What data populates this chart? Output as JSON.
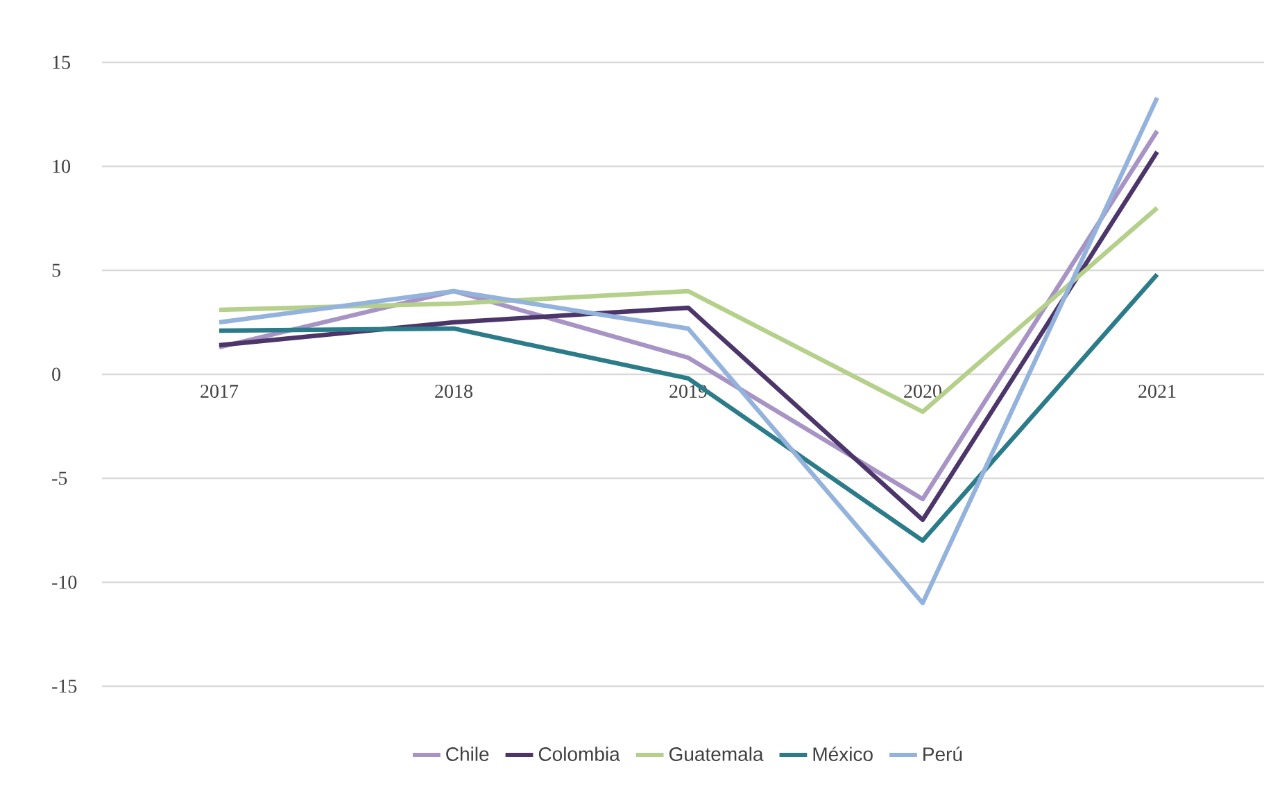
{
  "chart_data": {
    "type": "line",
    "categories": [
      "2017",
      "2018",
      "2019",
      "2020",
      "2021"
    ],
    "series": [
      {
        "name": "Chile",
        "color": "#a794c4",
        "values": [
          1.3,
          4.0,
          0.8,
          -6.0,
          11.7
        ]
      },
      {
        "name": "Colombia",
        "color": "#4b3569",
        "values": [
          1.4,
          2.5,
          3.2,
          -7.0,
          10.7
        ]
      },
      {
        "name": "Guatemala",
        "color": "#b5d08a",
        "values": [
          3.1,
          3.4,
          4.0,
          -1.8,
          8.0
        ]
      },
      {
        "name": "México",
        "color": "#2c7b89",
        "values": [
          2.1,
          2.2,
          -0.2,
          -8.0,
          4.8
        ]
      },
      {
        "name": "Perú",
        "color": "#94b3dc",
        "values": [
          2.5,
          4.0,
          2.2,
          -11.0,
          13.3
        ]
      }
    ],
    "ylim": [
      -15,
      15
    ],
    "yticks": [
      -15,
      -10,
      -5,
      0,
      5,
      10,
      15
    ],
    "grid": "y",
    "legend": "bottom",
    "marker": "none",
    "line_style": "solid"
  }
}
